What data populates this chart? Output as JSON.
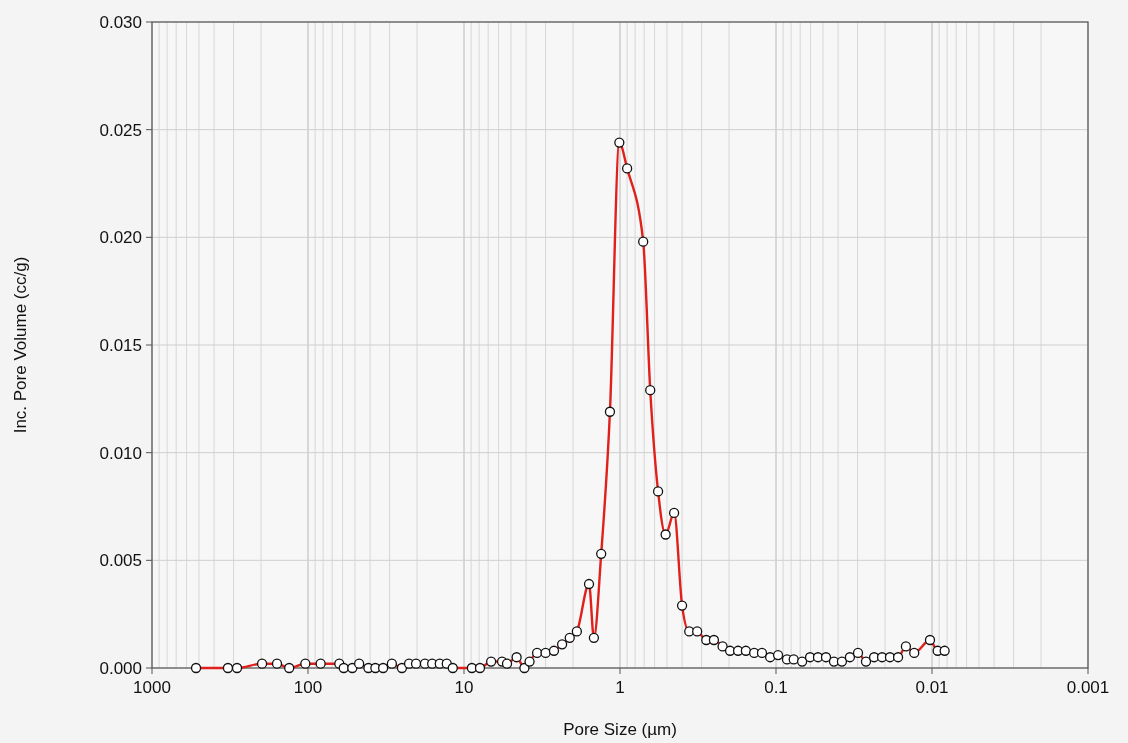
{
  "chart_data": {
    "type": "line",
    "xlabel": "Pore Size (µm)",
    "ylabel": "Inc. Pore Volume (cc/g)",
    "log": "x",
    "grid": true,
    "marker": "circle",
    "line_style": "solid",
    "xlim": [
      1000,
      0.001
    ],
    "xticks": [
      1000,
      100,
      10,
      1,
      0.1,
      0.01,
      0.001
    ],
    "ylim": [
      0,
      0.03
    ],
    "yticks": [
      {
        "value": 0,
        "label": "0.000"
      },
      {
        "value": 0.005,
        "label": "0.005"
      },
      {
        "value": 0.01,
        "label": "0.010"
      },
      {
        "value": 0.015,
        "label": "0.015"
      },
      {
        "value": 0.02,
        "label": "0.020"
      },
      {
        "value": 0.025,
        "label": "0.025"
      },
      {
        "value": 0.03,
        "label": "0.030"
      }
    ],
    "series": [
      {
        "color": "#e0201b",
        "x": [
          522,
          326,
          285,
          197,
          158,
          132,
          104,
          83,
          63,
          59,
          52,
          47,
          41,
          37,
          33,
          29,
          25,
          22.5,
          20.3,
          17.8,
          16,
          14.3,
          12.9,
          11.8,
          8.9,
          7.9,
          6.7,
          5.7,
          5.3,
          4.6,
          4.1,
          3.8,
          3.4,
          3.0,
          2.65,
          2.35,
          2.1,
          1.89,
          1.58,
          1.47,
          1.32,
          1.16,
          1.01,
          0.9,
          0.71,
          0.64,
          0.57,
          0.51,
          0.45,
          0.4,
          0.36,
          0.32,
          0.28,
          0.25,
          0.22,
          0.197,
          0.175,
          0.156,
          0.138,
          0.123,
          0.109,
          0.097,
          0.085,
          0.077,
          0.068,
          0.0605,
          0.0538,
          0.0478,
          0.0425,
          0.0378,
          0.0336,
          0.0298,
          0.0265,
          0.0235,
          0.0209,
          0.0186,
          0.0165,
          0.0147,
          0.013,
          0.0103,
          0.0092,
          0.0083
        ],
        "values": [
          0,
          0,
          0,
          0.0002,
          0.0002,
          0,
          0.0002,
          0.0002,
          0.0002,
          0,
          0,
          0.0002,
          0,
          0,
          0,
          0.0002,
          0,
          0.0002,
          0.0002,
          0.0002,
          0.0002,
          0.0002,
          0.0002,
          0,
          0,
          0,
          0.0003,
          0.0003,
          0.0002,
          0.0005,
          0,
          0.0003,
          0.0007,
          0.0007,
          0.0008,
          0.0011,
          0.0014,
          0.0017,
          0.0039,
          0.0014,
          0.0053,
          0.0119,
          0.0244,
          0.0232,
          0.0198,
          0.0129,
          0.0082,
          0.0062,
          0.0072,
          0.0029,
          0.0017,
          0.0017,
          0.0013,
          0.0013,
          0.001,
          0.0008,
          0.0008,
          0.0008,
          0.0007,
          0.0007,
          0.0005,
          0.0006,
          0.0004,
          0.0004,
          0.0003,
          0.0005,
          0.0005,
          0.0005,
          0.0003,
          0.0003,
          0.0005,
          0.0007,
          0.0003,
          0.0005,
          0.0005,
          0.0005,
          0.0005,
          0.001,
          0.0007,
          0.0013,
          0.0008,
          0.0008
        ]
      }
    ]
  }
}
